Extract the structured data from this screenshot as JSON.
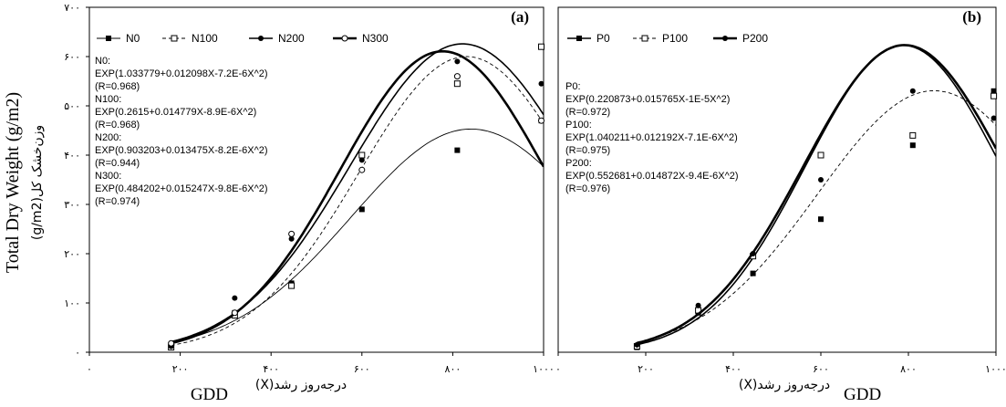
{
  "figure": {
    "ylabel_en": "Total Dry Weight (g/m2)",
    "ylabel_fa": "وزن‌خشک کل(g/m2)",
    "xlabel_en": "GDD",
    "xlabel_fa": "درجه‌روز رشد(X)"
  },
  "chart_data": [
    {
      "type": "scatter",
      "panel_label": "(a)",
      "xlim": [
        0,
        1000
      ],
      "ylim": [
        0,
        700
      ],
      "x_ticks": [
        0,
        200,
        400,
        600,
        800,
        1000
      ],
      "y_ticks": [
        0,
        100,
        200,
        300,
        400,
        500,
        600,
        700
      ],
      "x_tick_labels": [
        "۰",
        "۲۰۰",
        "۴۰۰",
        "۶۰۰",
        "۸۰۰",
        "۱۰۰۰"
      ],
      "y_tick_labels": [
        "۰",
        "۱۰۰",
        "۲۰۰",
        "۳۰۰",
        "۴۰۰",
        "۵۰۰",
        "۶۰۰",
        "۷۰۰"
      ],
      "legend_position": "top-left",
      "series": [
        {
          "name": "N0",
          "marker": "filled-square",
          "line": "thin-solid",
          "color": "#000000",
          "a": 1.033779,
          "b": 0.012098,
          "c": -7.2e-06,
          "x": [
            180,
            320,
            445,
            600,
            810,
            995
          ],
          "y": [
            15,
            80,
            140,
            290,
            410,
            470
          ],
          "annotation": [
            "N0:",
            "EXP(1.033779+0.012098X-7.2E-6X^2)",
            "(R=0.968)"
          ]
        },
        {
          "name": "N100",
          "marker": "open-square",
          "line": "dashed",
          "color": "#000000",
          "a": 0.2615,
          "b": 0.014779,
          "c": -8.9e-06,
          "x": [
            180,
            320,
            445,
            600,
            810,
            995
          ],
          "y": [
            10,
            75,
            135,
            400,
            545,
            620
          ],
          "annotation": [
            "N100:",
            "EXP(0.2615+0.014779X-8.9E-6X^2)",
            "(R=0.968)"
          ]
        },
        {
          "name": "N200",
          "marker": "filled-circle",
          "line": "medium-solid",
          "color": "#000000",
          "a": 0.903203,
          "b": 0.013475,
          "c": -8.2e-06,
          "x": [
            180,
            320,
            445,
            600,
            810,
            995
          ],
          "y": [
            12,
            110,
            230,
            390,
            590,
            545
          ],
          "annotation": [
            "N200:",
            "EXP(0.903203+0.013475X-8.2E-6X^2)",
            "(R=0.944)"
          ]
        },
        {
          "name": "N300",
          "marker": "open-circle",
          "line": "thick-solid",
          "color": "#000000",
          "a": 0.484202,
          "b": 0.015247,
          "c": -9.8e-06,
          "x": [
            180,
            320,
            445,
            600,
            810,
            995
          ],
          "y": [
            18,
            80,
            240,
            370,
            560,
            470
          ],
          "annotation": [
            "N300:",
            "EXP(0.484202+0.015247X-9.8E-6X^2)",
            "(R=0.974)"
          ]
        }
      ]
    },
    {
      "type": "scatter",
      "panel_label": "(b)",
      "xlim": [
        0,
        1000
      ],
      "ylim": [
        0,
        700
      ],
      "x_ticks": [
        0,
        200,
        400,
        600,
        800,
        1000
      ],
      "y_ticks": [],
      "x_tick_labels": [
        "۰",
        "۲۰۰",
        "۴۰۰",
        "۶۰۰",
        "۸۰۰",
        "۱۰۰۰"
      ],
      "y_tick_labels": [],
      "legend_position": "top-left",
      "series": [
        {
          "name": "P0",
          "marker": "filled-square",
          "line": "medium-solid",
          "color": "#000000",
          "a": 0.220873,
          "b": 0.015765,
          "c": -1e-05,
          "x": [
            180,
            320,
            445,
            600,
            810,
            995
          ],
          "y": [
            10,
            80,
            160,
            270,
            420,
            530
          ],
          "annotation": [
            "P0:",
            "EXP(0.220873+0.015765X-1E-5X^2)",
            "(R=0.972)"
          ]
        },
        {
          "name": "P100",
          "marker": "open-square",
          "line": "dashed",
          "color": "#000000",
          "a": 1.040211,
          "b": 0.012192,
          "c": -7.1e-06,
          "x": [
            180,
            320,
            445,
            600,
            810,
            995
          ],
          "y": [
            12,
            85,
            195,
            400,
            440,
            520
          ],
          "annotation": [
            "P100:",
            "EXP(1.040211+0.012192X-7.1E-6X^2)",
            "(R=0.975)"
          ]
        },
        {
          "name": "P200",
          "marker": "filled-circle",
          "line": "thick-solid",
          "color": "#000000",
          "a": 0.552681,
          "b": 0.014872,
          "c": -9.4e-06,
          "x": [
            180,
            320,
            445,
            600,
            810,
            995
          ],
          "y": [
            15,
            95,
            200,
            350,
            530,
            475
          ],
          "annotation": [
            "P200:",
            "EXP(0.552681+0.014872X-9.4E-6X^2)",
            "(R=0.976)"
          ]
        }
      ]
    }
  ]
}
